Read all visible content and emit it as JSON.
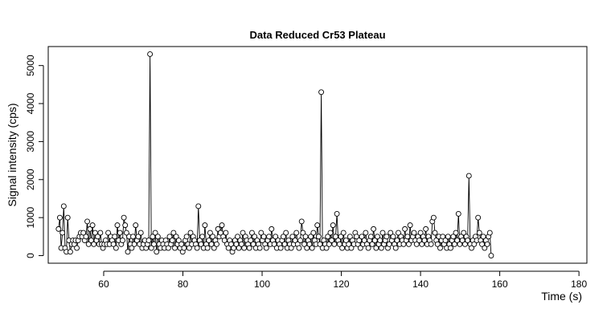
{
  "chart_data": {
    "type": "line",
    "title": "Data Reduced Cr53 Plateau",
    "xlabel": "Time (s)",
    "ylabel": "Signal intensity (cps)",
    "xlim": [
      46,
      182
    ],
    "ylim": [
      -200,
      5500
    ],
    "xticks": [
      60,
      80,
      100,
      120,
      140,
      160,
      180
    ],
    "yticks": [
      0,
      1000,
      2000,
      3000,
      4000,
      5000
    ],
    "grid": false,
    "legend": "none",
    "marker": "open-circle",
    "color": "#000000",
    "x_start": 48.6,
    "x_step": 0.33,
    "y": [
      700,
      1000,
      200,
      600,
      1300,
      200,
      100,
      1000,
      400,
      100,
      300,
      400,
      300,
      400,
      200,
      400,
      500,
      600,
      500,
      600,
      400,
      500,
      900,
      300,
      700,
      400,
      800,
      300,
      600,
      400,
      500,
      300,
      600,
      300,
      200,
      300,
      400,
      300,
      600,
      300,
      500,
      400,
      300,
      500,
      200,
      800,
      400,
      600,
      300,
      400,
      1000,
      800,
      600,
      100,
      500,
      300,
      200,
      500,
      300,
      800,
      400,
      500,
      300,
      600,
      200,
      300,
      400,
      200,
      300,
      400,
      5300,
      200,
      500,
      300,
      600,
      100,
      500,
      300,
      200,
      400,
      300,
      200,
      400,
      300,
      200,
      500,
      300,
      400,
      600,
      200,
      500,
      300,
      400,
      200,
      300,
      100,
      200,
      400,
      500,
      300,
      200,
      600,
      300,
      500,
      400,
      300,
      200,
      1300,
      400,
      300,
      500,
      200,
      800,
      300,
      200,
      400,
      600,
      300,
      500,
      200,
      400,
      300,
      700,
      500,
      600,
      800,
      500,
      400,
      600,
      300,
      200,
      400,
      300,
      100,
      200,
      400,
      300,
      500,
      200,
      400,
      300,
      600,
      200,
      500,
      400,
      300,
      200,
      400,
      600,
      300,
      500,
      200,
      400,
      300,
      200,
      600,
      400,
      500,
      300,
      200,
      400,
      500,
      300,
      700,
      400,
      300,
      500,
      200,
      400,
      300,
      200,
      400,
      500,
      300,
      600,
      200,
      400,
      300,
      200,
      500,
      300,
      400,
      600,
      300,
      200,
      400,
      900,
      600,
      300,
      500,
      200,
      400,
      300,
      500,
      200,
      600,
      400,
      300,
      800,
      500,
      300,
      4300,
      200,
      400,
      300,
      200,
      500,
      300,
      600,
      400,
      800,
      300,
      500,
      1100,
      400,
      300,
      500,
      200,
      600,
      300,
      400,
      200,
      300,
      500,
      200,
      400,
      300,
      600,
      500,
      300,
      400,
      200,
      500,
      300,
      400,
      600,
      300,
      200,
      400,
      500,
      300,
      700,
      400,
      200,
      500,
      300,
      400,
      200,
      600,
      300,
      400,
      500,
      200,
      300,
      600,
      400,
      500,
      300,
      200,
      400,
      600,
      300,
      500,
      400,
      300,
      700,
      400,
      500,
      300,
      800,
      400,
      500,
      600,
      400,
      300,
      500,
      400,
      600,
      300,
      500,
      400,
      700,
      300,
      500,
      400,
      300,
      900,
      1000,
      600,
      400,
      300,
      500,
      200,
      400,
      500,
      300,
      400,
      200,
      500,
      300,
      200,
      400,
      500,
      300,
      600,
      400,
      1100,
      300,
      500,
      400,
      600,
      300,
      500,
      400,
      2100,
      300,
      200,
      400,
      300,
      500,
      400,
      1000,
      600,
      400,
      300,
      500,
      200,
      400,
      300,
      500,
      600,
      0
    ]
  }
}
